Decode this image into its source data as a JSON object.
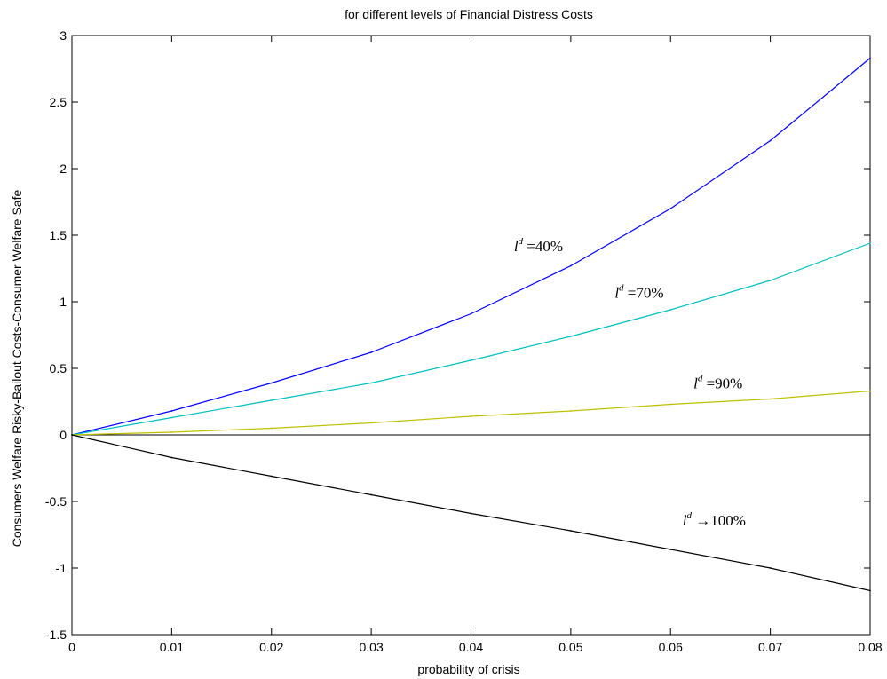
{
  "chart_data": {
    "type": "line",
    "title": "for different levels of Financial Distress Costs",
    "xlabel": "probability of crisis",
    "ylabel": "Consumers Welfare Risky-Bailout Costs-Consumer Welfare Safe",
    "xlim": [
      0,
      0.08
    ],
    "ylim": [
      -1.5,
      3
    ],
    "x_ticks": [
      0,
      0.01,
      0.02,
      0.03,
      0.04,
      0.05,
      0.06,
      0.07,
      0.08
    ],
    "x_tick_labels": [
      "0",
      "0.01",
      "0.02",
      "0.03",
      "0.04",
      "0.05",
      "0.06",
      "0.07",
      "0.08"
    ],
    "y_ticks": [
      -1.5,
      -1,
      -0.5,
      0,
      0.5,
      1,
      1.5,
      2,
      2.5,
      3
    ],
    "y_tick_labels": [
      "-1.5",
      "-1",
      "-0.5",
      "0",
      "0.5",
      "1",
      "1.5",
      "2",
      "2.5",
      "3"
    ],
    "grid": false,
    "zero_line": true,
    "x": [
      0,
      0.01,
      0.02,
      0.03,
      0.04,
      0.05,
      0.06,
      0.07,
      0.08
    ],
    "series": [
      {
        "name": "l^d = 40%",
        "color": "#0000ff",
        "values": [
          0,
          0.18,
          0.39,
          0.62,
          0.91,
          1.27,
          1.7,
          2.21,
          2.83
        ]
      },
      {
        "name": "l^d = 70%",
        "color": "#00bfbf",
        "values": [
          0,
          0.13,
          0.26,
          0.39,
          0.56,
          0.74,
          0.94,
          1.16,
          1.44
        ]
      },
      {
        "name": "l^d = 90%",
        "color": "#bfbf00",
        "values": [
          0,
          0.02,
          0.05,
          0.09,
          0.14,
          0.18,
          0.23,
          0.27,
          0.33
        ]
      },
      {
        "name": "l^d → 100%",
        "color": "#000000",
        "values": [
          0,
          -0.17,
          -0.31,
          -0.45,
          -0.59,
          -0.72,
          -0.86,
          -1.0,
          -1.17
        ]
      }
    ],
    "annotations": [
      {
        "series": 0,
        "base": "l",
        "sup": "d",
        "text": " =40%",
        "x": 0.0443,
        "y": 1.38
      },
      {
        "series": 1,
        "base": "l",
        "sup": "d",
        "text": " =70%",
        "x": 0.0544,
        "y": 1.03
      },
      {
        "series": 2,
        "base": "l",
        "sup": "d",
        "text": " =90%",
        "x": 0.0623,
        "y": 0.35
      },
      {
        "series": 3,
        "base": "l",
        "sup": "d",
        "text": " →100%",
        "x": 0.0612,
        "y": -0.68
      }
    ]
  }
}
